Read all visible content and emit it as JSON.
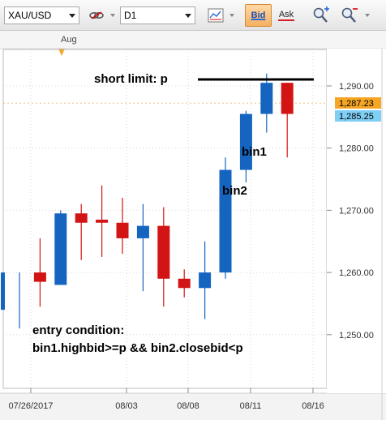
{
  "toolbar": {
    "symbol": "XAU/USD",
    "timeframe": "D1",
    "bid_label": "Bid",
    "ask_label": "Ask",
    "icons": [
      "link-icon",
      "chart-type-icon",
      "zoom-in-icon",
      "zoom-out-icon"
    ]
  },
  "chart": {
    "period_marker": "Aug",
    "price_ticks": [
      "1,290.00",
      "1,280.00",
      "1,270.00",
      "1,260.00",
      "1,250.00"
    ],
    "date_ticks": [
      "07/26/2017",
      "08/03",
      "08/08",
      "08/11",
      "08/16"
    ],
    "bid_price": "1,287.23",
    "ask_price": "1,285.25",
    "annotations": {
      "short_limit": "short limit: p",
      "bin1": "bin1",
      "bin2": "bin2",
      "entry_line1": "entry condition:",
      "entry_line2": "bin1.highbid>=p && bin2.closebid<p"
    },
    "colors": {
      "bull": "#1565c0",
      "bear": "#d21414",
      "bid_badge": "#f5a623",
      "ask_badge": "#7fd0f5"
    }
  },
  "chart_data": {
    "type": "candlestick",
    "title": "",
    "ylim": [
      1245,
      1297
    ],
    "price_ticks": [
      1290,
      1280,
      1270,
      1260,
      1250
    ],
    "candles": [
      {
        "o": 1254,
        "h": 1260,
        "l": 1251,
        "c": 1260
      },
      {
        "o": 1260,
        "h": 1265.5,
        "l": 1254.5,
        "c": 1258.5
      },
      {
        "o": 1258,
        "h": 1270,
        "l": 1258,
        "c": 1269.5
      },
      {
        "o": 1269.5,
        "h": 1271,
        "l": 1262,
        "c": 1268
      },
      {
        "o": 1268.5,
        "h": 1274,
        "l": 1262.5,
        "c": 1268
      },
      {
        "o": 1268,
        "h": 1272,
        "l": 1263,
        "c": 1265.5
      },
      {
        "o": 1265.5,
        "h": 1271,
        "l": 1257,
        "c": 1267.5
      },
      {
        "o": 1267.5,
        "h": 1270.5,
        "l": 1254.5,
        "c": 1259
      },
      {
        "o": 1259,
        "h": 1260.5,
        "l": 1256,
        "c": 1257.5
      },
      {
        "o": 1257.5,
        "h": 1265,
        "l": 1252.5,
        "c": 1260
      },
      {
        "o": 1260,
        "h": 1278.5,
        "l": 1259,
        "c": 1276.5
      },
      {
        "o": 1276.5,
        "h": 1286,
        "l": 1274.5,
        "c": 1285.5
      },
      {
        "o": 1285.5,
        "h": 1292,
        "l": 1282.5,
        "c": 1290.5
      },
      {
        "o": 1290.5,
        "h": 1290.5,
        "l": 1278.5,
        "c": 1285.5
      }
    ]
  }
}
